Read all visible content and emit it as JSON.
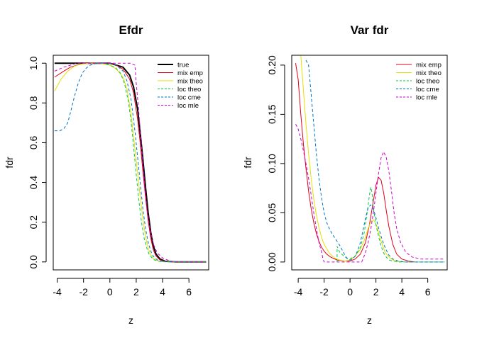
{
  "chart_data": [
    {
      "type": "line",
      "title": "Efdr",
      "xlabel": "z",
      "ylabel": "fdr",
      "xlim": [
        -4.3,
        7.5
      ],
      "ylim": [
        -0.04,
        1.04
      ],
      "xticks": [
        -4,
        -2,
        0,
        2,
        4,
        6
      ],
      "yticks": [
        0.0,
        0.2,
        0.4,
        0.6,
        0.8,
        1.0
      ],
      "ytick_labels": [
        "0.0",
        "0.2",
        "0.4",
        "0.6",
        "0.8",
        "1.0"
      ],
      "legend_position": "top-right",
      "legend": [
        "true",
        "mix emp",
        "mix theo",
        "loc theo",
        "loc cme",
        "loc mle"
      ],
      "series": [
        {
          "name": "true",
          "color": "#000000",
          "dash": "solid",
          "width": 2,
          "x": [
            -4.2,
            -1,
            0,
            0.5,
            1,
            1.5,
            1.8,
            2.1,
            2.3,
            2.5,
            2.7,
            2.9,
            3.1,
            3.3,
            3.5,
            3.8,
            4.2,
            5,
            7.3
          ],
          "y": [
            1.0,
            1.0,
            1.0,
            0.99,
            0.98,
            0.94,
            0.88,
            0.77,
            0.65,
            0.52,
            0.38,
            0.25,
            0.15,
            0.08,
            0.04,
            0.015,
            0.003,
            0.0,
            0.0
          ]
        },
        {
          "name": "mix emp",
          "color": "#e0001b",
          "dash": "solid",
          "width": 1,
          "x": [
            -4.2,
            -3.5,
            -3,
            -2.5,
            -2,
            -1,
            0,
            0.5,
            1,
            1.5,
            1.8,
            2.1,
            2.3,
            2.5,
            2.7,
            2.9,
            3.1,
            3.3,
            3.5,
            3.8,
            4.2,
            5,
            7.3
          ],
          "y": [
            0.93,
            0.96,
            0.98,
            0.99,
            1.0,
            1.0,
            1.0,
            0.99,
            0.97,
            0.92,
            0.85,
            0.72,
            0.6,
            0.46,
            0.33,
            0.21,
            0.12,
            0.06,
            0.03,
            0.01,
            0.002,
            0.0,
            0.0
          ]
        },
        {
          "name": "mix theo",
          "color": "#e5e000",
          "dash": "solid",
          "width": 1,
          "x": [
            -4.2,
            -3.7,
            -3.2,
            -2.7,
            -2.2,
            -1.5,
            -0.8,
            0,
            0.5,
            1,
            1.3,
            1.6,
            1.9,
            2.1,
            2.3,
            2.5,
            2.7,
            2.9,
            3.1,
            3.4,
            3.8,
            4.5,
            7.3
          ],
          "y": [
            0.86,
            0.92,
            0.96,
            0.985,
            0.995,
            1.0,
            1.0,
            0.99,
            0.97,
            0.93,
            0.87,
            0.75,
            0.57,
            0.45,
            0.33,
            0.22,
            0.13,
            0.07,
            0.035,
            0.012,
            0.003,
            0.0,
            0.0
          ]
        },
        {
          "name": "loc theo",
          "color": "#00cc44",
          "dash": "dashed",
          "width": 1,
          "x": [
            -1,
            -0.5,
            0,
            0.4,
            0.8,
            1.1,
            1.4,
            1.6,
            1.8,
            2.0,
            2.2,
            2.4,
            2.6,
            2.8,
            3.0,
            3.3,
            3.7,
            4.2,
            7.3
          ],
          "y": [
            1.0,
            1.0,
            0.99,
            0.98,
            0.95,
            0.9,
            0.81,
            0.71,
            0.58,
            0.44,
            0.31,
            0.2,
            0.12,
            0.07,
            0.035,
            0.012,
            0.003,
            0.0,
            0.0
          ]
        },
        {
          "name": "loc cme",
          "color": "#0072c6",
          "dash": "dashed",
          "width": 1,
          "x": [
            -4.2,
            -3.8,
            -3.5,
            -3.2,
            -3.0,
            -2.7,
            -2.4,
            -2.1,
            -1.8,
            -1.5,
            -1.0,
            0,
            0.5,
            1,
            1.3,
            1.6,
            1.9,
            2.1,
            2.3,
            2.5,
            2.7,
            2.9,
            3.1,
            3.3,
            3.6,
            4.0,
            4.5,
            7.3
          ],
          "y": [
            0.66,
            0.66,
            0.67,
            0.7,
            0.75,
            0.83,
            0.9,
            0.95,
            0.975,
            0.99,
            1.0,
            1.0,
            0.99,
            0.96,
            0.91,
            0.82,
            0.66,
            0.53,
            0.4,
            0.27,
            0.17,
            0.1,
            0.055,
            0.028,
            0.01,
            0.002,
            0.0,
            0.0
          ]
        },
        {
          "name": "loc mle",
          "color": "#d000d0",
          "dash": "dashed",
          "width": 1,
          "x": [
            -4.2,
            -3.5,
            -3,
            -2.5,
            -1.8,
            -1,
            0,
            1,
            1.6,
            1.9,
            2.0,
            2.2,
            2.4,
            2.6,
            2.8,
            3.0,
            3.3,
            3.6,
            4.0,
            4.5,
            5.0,
            7.3
          ],
          "y": [
            0.96,
            0.98,
            0.99,
            1.0,
            1.0,
            1.0,
            1.0,
            1.0,
            1.0,
            0.99,
            0.9,
            0.75,
            0.58,
            0.42,
            0.28,
            0.18,
            0.09,
            0.045,
            0.02,
            0.006,
            0.001,
            0.0
          ]
        }
      ]
    },
    {
      "type": "line",
      "title": "Var fdr",
      "xlabel": "z",
      "ylabel": "fdr",
      "xlim": [
        -4.5,
        7.5
      ],
      "ylim": [
        -0.008,
        0.21
      ],
      "xticks": [
        -4,
        -2,
        0,
        2,
        4,
        6
      ],
      "yticks": [
        0.0,
        0.05,
        0.1,
        0.15,
        0.2
      ],
      "ytick_labels": [
        "0.00",
        "0.05",
        "0.10",
        "0.15",
        "0.20"
      ],
      "legend_position": "top-right",
      "legend": [
        "mix emp",
        "mix theo",
        "loc theo",
        "loc cme",
        "loc mle"
      ],
      "series": [
        {
          "name": "mix emp",
          "color": "#e0001b",
          "dash": "solid",
          "width": 1,
          "x": [
            -4.2,
            -4.0,
            -3.8,
            -3.6,
            -3.4,
            -3.2,
            -3.0,
            -2.8,
            -2.6,
            -2.4,
            -2.2,
            -2.0,
            -1.8,
            -1.5,
            -1.0,
            -0.5,
            0,
            0.4,
            0.8,
            1.2,
            1.5,
            1.8,
            2.0,
            2.2,
            2.4,
            2.6,
            2.8,
            3.0,
            3.3,
            3.6,
            4.0,
            4.5,
            5.0
          ],
          "y": [
            0.202,
            0.185,
            0.15,
            0.12,
            0.095,
            0.072,
            0.054,
            0.04,
            0.029,
            0.021,
            0.015,
            0.011,
            0.008,
            0.005,
            0.002,
            0.001,
            0.001,
            0.003,
            0.008,
            0.02,
            0.038,
            0.062,
            0.078,
            0.086,
            0.083,
            0.07,
            0.052,
            0.036,
            0.018,
            0.008,
            0.003,
            0.001,
            0.0
          ]
        },
        {
          "name": "mix theo",
          "color": "#e5e000",
          "dash": "solid",
          "width": 1,
          "x": [
            -4.0,
            -3.8,
            -3.6,
            -3.4,
            -3.2,
            -3.0,
            -2.8,
            -2.6,
            -2.4,
            -2.2,
            -2.0,
            -1.6,
            -1.2,
            -0.8,
            -0.4,
            0,
            0.4,
            0.8,
            1.1,
            1.4,
            1.6,
            1.8,
            2.0,
            2.2,
            2.4,
            2.7,
            3.0,
            3.3,
            3.7,
            4.2
          ],
          "y": [
            0.24,
            0.21,
            0.175,
            0.14,
            0.11,
            0.085,
            0.064,
            0.048,
            0.035,
            0.025,
            0.018,
            0.009,
            0.004,
            0.002,
            0.001,
            0.002,
            0.006,
            0.013,
            0.022,
            0.034,
            0.041,
            0.043,
            0.039,
            0.03,
            0.021,
            0.01,
            0.005,
            0.002,
            0.0005,
            0.0
          ]
        },
        {
          "name": "loc theo",
          "color": "#00cc44",
          "dash": "dashed",
          "width": 1,
          "x": [
            -1.0,
            -1.0,
            -0.8,
            -0.4,
            0,
            0.4,
            0.8,
            1.1,
            1.3,
            1.5,
            1.6,
            1.7,
            1.8,
            2.0,
            2.2,
            2.4,
            2.6,
            2.8,
            3.0,
            3.3,
            3.7,
            4.2,
            7.3
          ],
          "y": [
            0.0,
            0.016,
            0.01,
            0.005,
            0.003,
            0.006,
            0.015,
            0.03,
            0.048,
            0.068,
            0.076,
            0.07,
            0.055,
            0.038,
            0.026,
            0.016,
            0.009,
            0.005,
            0.002,
            0.001,
            0.0,
            0.0,
            0.0
          ]
        },
        {
          "name": "loc cme",
          "color": "#0072c6",
          "dash": "dashed",
          "width": 1,
          "x": [
            -3.4,
            -3.2,
            -3.0,
            -2.8,
            -2.6,
            -2.4,
            -2.2,
            -2.0,
            -1.8,
            -1.6,
            -1.4,
            -1.2,
            -1.0,
            -0.8,
            -0.6,
            -0.4,
            -0.2,
            0,
            0.2,
            0.4,
            0.6,
            0.8,
            1.0,
            1.2,
            1.4,
            1.6,
            1.8,
            2.0,
            2.2,
            2.4,
            2.6,
            2.8,
            3.0,
            3.3,
            3.7,
            4.2,
            5.0,
            7.3
          ],
          "y": [
            0.205,
            0.2,
            0.17,
            0.14,
            0.11,
            0.085,
            0.065,
            0.05,
            0.04,
            0.034,
            0.029,
            0.025,
            0.021,
            0.017,
            0.012,
            0.007,
            0.003,
            0.002,
            0.003,
            0.006,
            0.012,
            0.02,
            0.032,
            0.045,
            0.055,
            0.058,
            0.054,
            0.045,
            0.035,
            0.026,
            0.018,
            0.012,
            0.007,
            0.003,
            0.001,
            0.0,
            0.0,
            0.0
          ]
        },
        {
          "name": "loc mle",
          "color": "#d000d0",
          "dash": "dashed",
          "width": 1,
          "x": [
            -4.2,
            -4.0,
            -3.8,
            -3.6,
            -3.4,
            -3.2,
            -3.0,
            -2.8,
            -2.6,
            -2.4,
            -2.2,
            -2.1,
            -2.0,
            0.9,
            1.0,
            1.2,
            1.4,
            1.6,
            1.8,
            2.0,
            2.2,
            2.4,
            2.6,
            2.8,
            3.0,
            3.2,
            3.4,
            3.6,
            3.9,
            4.3,
            4.8,
            5.5,
            6.5,
            7.3
          ],
          "y": [
            0.14,
            0.135,
            0.125,
            0.113,
            0.1,
            0.085,
            0.068,
            0.05,
            0.034,
            0.02,
            0.01,
            0.004,
            0.0,
            0.0,
            0.003,
            0.01,
            0.02,
            0.033,
            0.05,
            0.07,
            0.09,
            0.106,
            0.112,
            0.106,
            0.092,
            0.072,
            0.05,
            0.034,
            0.02,
            0.01,
            0.005,
            0.003,
            0.003,
            0.003
          ]
        }
      ]
    }
  ]
}
